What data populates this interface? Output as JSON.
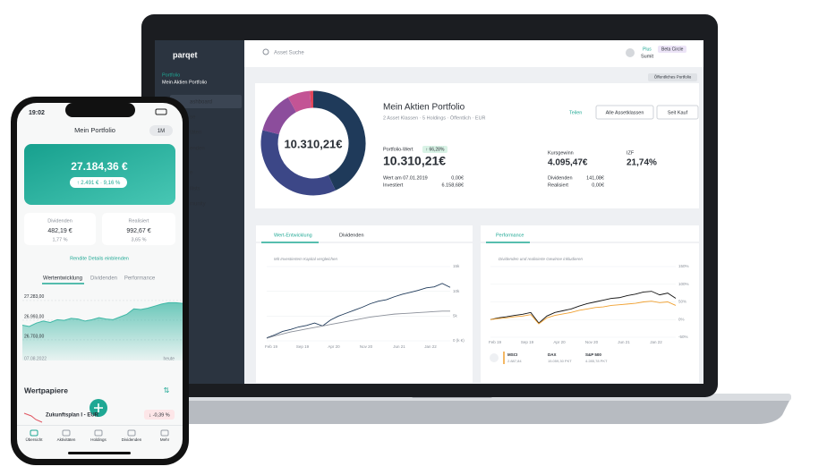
{
  "laptop": {
    "sidebar": {
      "logo": "parqet",
      "portfolio_label": "Portfolio",
      "portfolio_name": "Mein Aktien Portfolio",
      "menu": [
        "ashboard",
        "se",
        "täten",
        "enden",
        "e",
        "ilists",
        "munity"
      ]
    },
    "topbar": {
      "search": "Asset Suche",
      "plan": "Plus",
      "beta": "Beta Circle",
      "user": "Sumit"
    },
    "public_badge": "Öffentliches Portfolio",
    "summary": {
      "title": "Mein Aktien Portfolio",
      "subtitle": "2 Asset Klassen · 5 Holdings · Öffentlich · EUR",
      "share": "Teilen",
      "filter": "Alle Assetklassen",
      "period": "Seit Kauf",
      "donut_center": "10.310,21€",
      "donut": {
        "type": "pie",
        "values": [
          43,
          36,
          13,
          7,
          1
        ],
        "colors": [
          "#1f3a5a",
          "#3c4787",
          "#8c4d9c",
          "#c35495",
          "#e0465a"
        ]
      },
      "portfolio_label": "Portfolio-Wert",
      "change": "↑ 66,28%",
      "portfolio_value": "10.310,21€",
      "start_label": "Wert am 07.01.2019",
      "start_value": "0,00€",
      "invested_label": "Investiert",
      "invested_value": "6.158,68€",
      "gain_label": "Kursgewinn",
      "gain_value": "4.095,47€",
      "irr_label": "IZF",
      "irr_value": "21,74%",
      "dividends_label": "Dividenden",
      "dividends_value": "141,08€",
      "realized_label": "Realisiert",
      "realized_value": "0,00€"
    },
    "value_chart": {
      "type": "line",
      "tabs": [
        "Wert-Entwicklung",
        "Dividenden"
      ],
      "note": "Mit Investiertem Kapital vergleichen",
      "ylim": [
        0,
        15
      ],
      "yticks": [
        {
          "value": 15,
          "label": "15k"
        },
        {
          "value": 10,
          "label": "10k"
        },
        {
          "value": 5,
          "label": "5k"
        },
        {
          "value": 0,
          "label": "0 (k €)"
        }
      ],
      "x_labels": [
        "Feb 19",
        "Sep 19",
        "Apr 20",
        "Nov 20",
        "Jun 21",
        "Jan 22"
      ],
      "series": [
        {
          "color": "#1f3a5a",
          "values": [
            0.6,
            1.2,
            1.9,
            2.3,
            2.8,
            3.1,
            3.6,
            3.0,
            4.2,
            5.0,
            5.6,
            6.2,
            6.8,
            7.5,
            8.0,
            8.3,
            8.9,
            9.4,
            9.8,
            10.2,
            10.7,
            10.9,
            11.6,
            10.8
          ]
        },
        {
          "color": "#8a8f99",
          "values": [
            0.5,
            1.0,
            1.4,
            1.8,
            2.1,
            2.4,
            2.7,
            3.0,
            3.3,
            3.6,
            3.9,
            4.2,
            4.5,
            4.8,
            5.0,
            5.2,
            5.4,
            5.5,
            5.6,
            5.7,
            5.8,
            5.9,
            6.0,
            6.0
          ]
        }
      ]
    },
    "performance_chart": {
      "type": "line",
      "tab": "Performance",
      "note": "Dividenden und realisierte Gewinne inkludieren",
      "ylim": [
        -50,
        150
      ],
      "yticks": [
        {
          "value": 150,
          "label": "150%"
        },
        {
          "value": 100,
          "label": "100%"
        },
        {
          "value": 50,
          "label": "50%"
        },
        {
          "value": 0,
          "label": "0%"
        },
        {
          "value": -50,
          "label": "-50%"
        }
      ],
      "x_labels": [
        "Feb 19",
        "Sep 19",
        "Apr 20",
        "Nov 20",
        "Jun 21",
        "Jan 22"
      ],
      "series": [
        {
          "name": "MSCI",
          "value_label": "2.887,84",
          "color": "#111111",
          "values": [
            0,
            5,
            8,
            12,
            15,
            20,
            -10,
            10,
            20,
            25,
            30,
            38,
            45,
            50,
            55,
            60,
            62,
            68,
            72,
            78,
            80,
            70,
            75,
            60
          ]
        },
        {
          "name": "DAX",
          "value_label": "15.059,30 PKT",
          "color": "#f0a030",
          "values": [
            0,
            3,
            5,
            8,
            10,
            14,
            -12,
            5,
            12,
            16,
            20,
            26,
            30,
            34,
            36,
            40,
            42,
            44,
            46,
            50,
            52,
            48,
            50,
            40
          ]
        }
      ],
      "extra_legend": {
        "name": "S&P 500",
        "value_label": "4.285,78 PKT"
      }
    }
  },
  "phone": {
    "time": "19:02",
    "header": "Mein Portfolio",
    "range": "1M",
    "total": "27.184,36 €",
    "change": "↑ 2.491 € · 9,16 %",
    "dividends": {
      "label": "Dividenden",
      "value": "482,19 €",
      "percent": "1,77 %"
    },
    "realized": {
      "label": "Realisiert",
      "value": "992,67 €",
      "percent": "3,65 %"
    },
    "details_link": "Rendite Details einblenden",
    "tabs": [
      "Wertentwicklung",
      "Dividenden",
      "Performance"
    ],
    "chart": {
      "type": "area",
      "color": "#3fb8a6",
      "ylim": [
        26400,
        27400
      ],
      "yticks": [
        {
          "value": 27283,
          "label": "27.283,00"
        },
        {
          "value": 26993,
          "label": "26.993,00"
        },
        {
          "value": 26703,
          "label": "26.703,00"
        }
      ],
      "start_label": "07.08.2022",
      "end_label": "heute",
      "values": [
        26920,
        26900,
        26950,
        26980,
        26960,
        27000,
        26990,
        27020,
        27010,
        26980,
        27000,
        27030,
        27010,
        27000,
        27040,
        27080,
        27160,
        27150,
        27170,
        27200,
        27230,
        27250,
        27250,
        27240
      ]
    },
    "section_title": "Wertpapiere",
    "holding": {
      "name": "Zukunftsplan I - EUR",
      "change": "↓ -0,39 %"
    },
    "nav": [
      "Übersicht",
      "Aktivitäten",
      "Holdings",
      "Dividenden",
      "Mehr"
    ]
  }
}
